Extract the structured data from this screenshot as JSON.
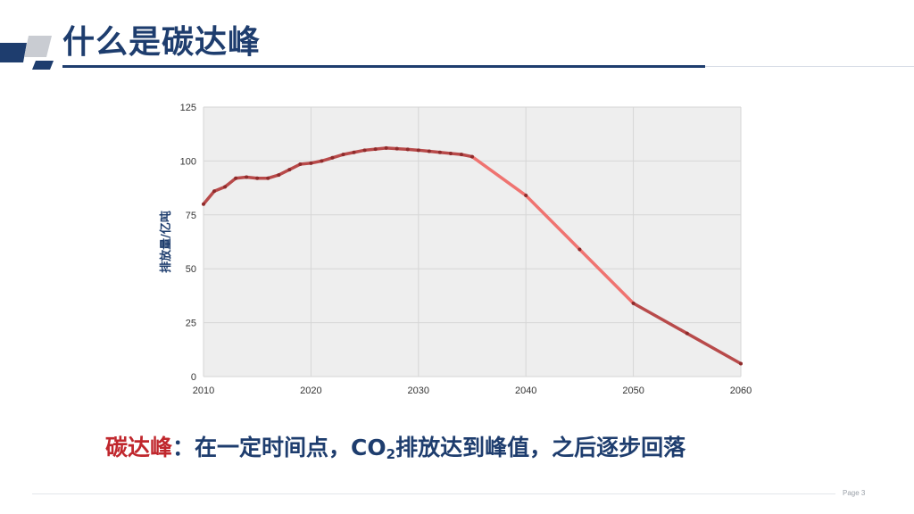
{
  "title": "什么是碳达峰",
  "caption": {
    "term": "碳达峰",
    "colon": "：",
    "text_before": "在一定时间点，CO",
    "subscript": "2",
    "text_after": "排放达到峰值，之后逐步回落"
  },
  "page_label": "Page 3",
  "colors": {
    "title": "#1e3d6e",
    "accent_red": "#c0272d",
    "line_historical": "#b84a4a",
    "line_projected": "#ef7370",
    "plot_bg": "#eeeeee"
  },
  "chart_data": {
    "type": "line",
    "ylabel": "排放量/亿吨",
    "xlabel": "",
    "xlim": [
      2010,
      2060
    ],
    "ylim": [
      0,
      125
    ],
    "xticks": [
      2010,
      2020,
      2030,
      2040,
      2050,
      2060
    ],
    "yticks": [
      0,
      25,
      50,
      75,
      100,
      125
    ],
    "grid": true,
    "series": [
      {
        "points": [
          [
            2010,
            80
          ],
          [
            2011,
            86
          ],
          [
            2012,
            88
          ],
          [
            2013,
            92
          ],
          [
            2014,
            92.5
          ],
          [
            2015,
            92
          ],
          [
            2016,
            92
          ],
          [
            2017,
            93.5
          ],
          [
            2018,
            96
          ],
          [
            2019,
            98.5
          ],
          [
            2020,
            99
          ],
          [
            2021,
            100
          ],
          [
            2022,
            101.5
          ],
          [
            2023,
            103
          ],
          [
            2024,
            104
          ],
          [
            2025,
            105
          ],
          [
            2026,
            105.5
          ],
          [
            2027,
            106
          ],
          [
            2028,
            105.7
          ],
          [
            2029,
            105.4
          ],
          [
            2030,
            105
          ],
          [
            2031,
            104.5
          ],
          [
            2032,
            104
          ],
          [
            2033,
            103.5
          ],
          [
            2034,
            103
          ],
          [
            2035,
            102
          ],
          [
            2040,
            84
          ],
          [
            2045,
            59
          ],
          [
            2050,
            34
          ],
          [
            2055,
            20
          ],
          [
            2060,
            6
          ]
        ]
      }
    ]
  }
}
